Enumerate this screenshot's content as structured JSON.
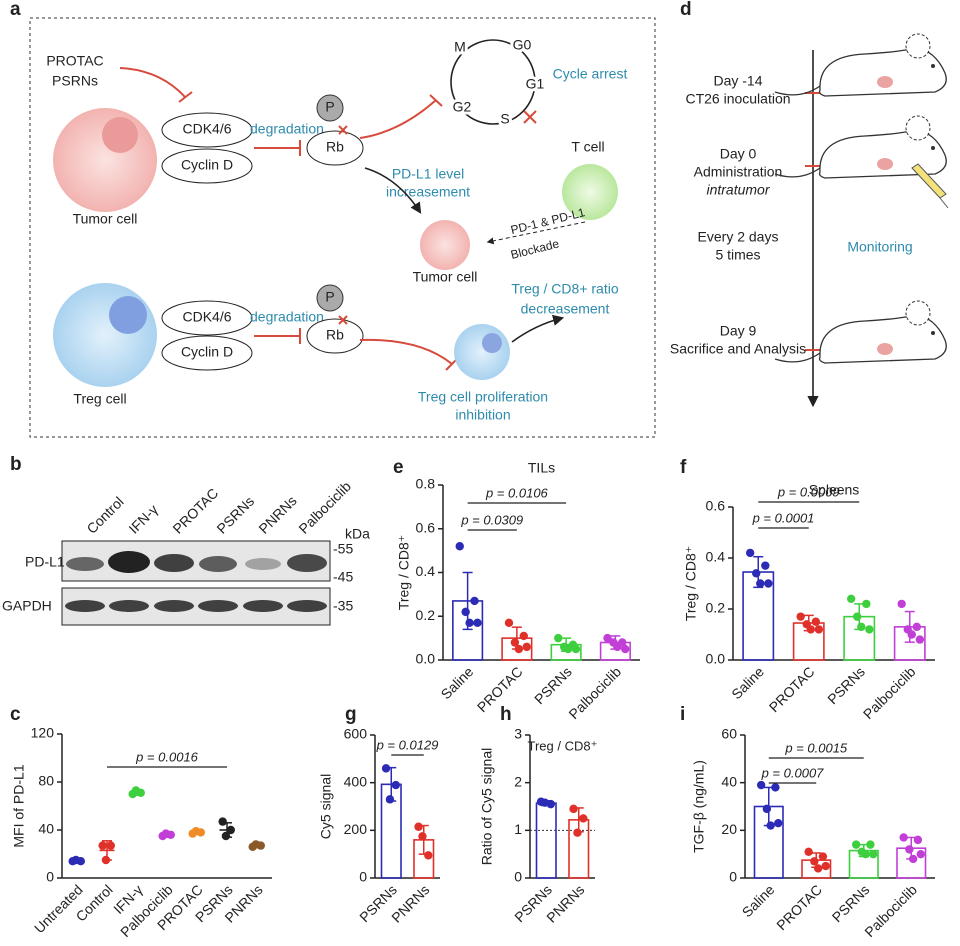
{
  "panel_a": {
    "label": "a",
    "inhibitors": [
      "PROTAC",
      "PSRNs"
    ],
    "tumor_row": {
      "cell": "Tumor cell",
      "complex": [
        "CDK4/6",
        "Cyclin D"
      ],
      "process": "degradation",
      "phospho": "P",
      "target": "Rb",
      "pdl1": [
        "PD-L1 level",
        "increasement"
      ],
      "tumor_cell": "Tumor cell",
      "t_cell": "T cell",
      "blockade": [
        "PD-1 & PD-L1",
        "Blockade"
      ]
    },
    "cycle": {
      "phases": [
        "M",
        "G0",
        "G1",
        "S",
        "G2"
      ],
      "outcome": "Cycle arrest"
    },
    "treg_row": {
      "cell": "Treg cell",
      "complex": [
        "CDK4/6",
        "Cyclin D"
      ],
      "process": "degradation",
      "phospho": "P",
      "target": "Rb",
      "inhibition": [
        "Treg cell proliferation",
        "inhibition"
      ],
      "ratio": [
        "Treg / CD8+ ratio",
        "decreasement"
      ]
    }
  },
  "panel_d": {
    "label": "d",
    "events": [
      [
        "Day -14",
        "CT26 inoculation"
      ],
      [
        "Day 0",
        "Administration",
        "intratumor"
      ],
      [
        "Every 2 days",
        "5 times"
      ],
      [
        "Day 9",
        "Sacrifice and Analysis"
      ]
    ],
    "phase": "Monitoring"
  },
  "panel_b": {
    "label": "b",
    "lanes": [
      "Control",
      "IFN-γ",
      "PROTAC",
      "PSRNs",
      "PNRNs",
      "Palbociclib"
    ],
    "unit": "kDa",
    "rows": [
      "PD-L1",
      "GAPDH"
    ],
    "markers": [
      "-55",
      "-45",
      "-35"
    ]
  },
  "chart_data": [
    {
      "panel": "e",
      "type": "bar",
      "title": "TILs",
      "ylabel": "Treg / CD8⁺",
      "categories": [
        "Saline",
        "PROTAC",
        "PSRNs",
        "Palbociclib"
      ],
      "colors": [
        "#2b2bb5",
        "#e0302a",
        "#3ecf3e",
        "#c13fd6"
      ],
      "values": [
        0.27,
        0.1,
        0.07,
        0.08
      ],
      "errors": [
        0.13,
        0.05,
        0.03,
        0.03
      ],
      "points": [
        [
          0.52,
          0.27,
          0.22,
          0.17,
          0.17
        ],
        [
          0.17,
          0.11,
          0.08,
          0.06,
          0.05
        ],
        [
          0.1,
          0.07,
          0.06,
          0.05,
          0.05
        ],
        [
          0.1,
          0.08,
          0.08,
          0.05,
          0.06
        ]
      ],
      "ylim": [
        0,
        0.8
      ],
      "yticks": [
        {
          "value": 0,
          "label": "0.0"
        },
        0.2,
        0.4,
        0.6,
        0.8
      ],
      "annotations": [
        "p = 0.0106",
        "p = 0.0309"
      ]
    },
    {
      "panel": "f",
      "type": "bar",
      "title": "Spleens",
      "ylabel": "Treg / CD8⁺",
      "categories": [
        "Saline",
        "PROTAC",
        "PSRNs",
        "Palbociclib"
      ],
      "colors": [
        "#2b2bb5",
        "#e0302a",
        "#3ecf3e",
        "#c13fd6"
      ],
      "values": [
        0.345,
        0.145,
        0.17,
        0.13
      ],
      "errors": [
        0.06,
        0.03,
        0.05,
        0.06
      ],
      "points": [
        [
          0.42,
          0.37,
          0.34,
          0.3,
          0.3
        ],
        [
          0.17,
          0.15,
          0.14,
          0.12,
          0.12
        ],
        [
          0.24,
          0.22,
          0.17,
          0.12,
          0.13
        ],
        [
          0.22,
          0.13,
          0.12,
          0.08,
          0.1
        ]
      ],
      "ylim": [
        0,
        0.6
      ],
      "yticks": [
        {
          "value": 0,
          "label": "0.0"
        },
        0.2,
        0.4,
        0.6
      ],
      "annotations": [
        "p = 0.0009",
        "p = 0.0001"
      ]
    },
    {
      "panel": "c",
      "type": "dot",
      "ylabel": "MFI of PD-L1",
      "categories": [
        "Untreated",
        "Control",
        "IFN-γ",
        "Palbociclib",
        "PROTAC",
        "PSRNs",
        "PNRNs"
      ],
      "colors": [
        "#2b2bb5",
        "#e0302a",
        "#3ecf3e",
        "#c13fd6",
        "#f08a24",
        "#222222",
        "#8b5a2b"
      ],
      "values": [
        14,
        23,
        71,
        36,
        38,
        40,
        27
      ],
      "errors": [
        1,
        8,
        2,
        2,
        1.5,
        6,
        1.5
      ],
      "points": [
        [
          14,
          14,
          15
        ],
        [
          27,
          27,
          15
        ],
        [
          70,
          71,
          73
        ],
        [
          35,
          36,
          37
        ],
        [
          37,
          38,
          39
        ],
        [
          47,
          40,
          35
        ],
        [
          26,
          27,
          28
        ]
      ],
      "ylim": [
        0,
        120
      ],
      "yticks": [
        0,
        40,
        80,
        120
      ],
      "annotations": [
        "p = 0.0016"
      ]
    },
    {
      "panel": "g",
      "type": "bar",
      "ylabel": "Cy5 signal",
      "categories": [
        "PSRNs",
        "PNRNs"
      ],
      "colors": [
        "#2b2bb5",
        "#e0302a"
      ],
      "values": [
        393,
        160
      ],
      "errors": [
        70,
        60
      ],
      "points": [
        [
          460,
          390,
          330
        ],
        [
          215,
          95,
          175
        ]
      ],
      "ylim": [
        0,
        600
      ],
      "yticks": [
        0,
        200,
        400,
        600
      ],
      "annotations": [
        "p = 0.0129"
      ]
    },
    {
      "panel": "h",
      "type": "bar",
      "ylabel": "Ratio of Cy5 signal",
      "subtitle": "Treg / CD8⁺",
      "categories": [
        "PSRNs",
        "PNRNs"
      ],
      "colors": [
        "#2b2bb5",
        "#e0302a"
      ],
      "values": [
        1.57,
        1.22
      ],
      "errors": [
        0.05,
        0.25
      ],
      "points": [
        [
          1.6,
          1.55,
          1.58
        ],
        [
          1.45,
          1.25,
          0.95
        ]
      ],
      "ylim": [
        0,
        3
      ],
      "yticks": [
        0,
        1,
        2,
        3
      ],
      "reference_line": 1
    },
    {
      "panel": "i",
      "type": "bar",
      "ylabel": "TGF-β (ng/mL)",
      "categories": [
        "Saline",
        "PROTAC",
        "PSRNs",
        "Palbociclib"
      ],
      "colors": [
        "#2b2bb5",
        "#e0302a",
        "#3ecf3e",
        "#c13fd6"
      ],
      "values": [
        30,
        7.5,
        11.5,
        12.5
      ],
      "errors": [
        8,
        3,
        2.5,
        4.5
      ],
      "points": [
        [
          39,
          38,
          29,
          23,
          22
        ],
        [
          11,
          9,
          7,
          5,
          4
        ],
        [
          14,
          14,
          11,
          10,
          10
        ],
        [
          17,
          16,
          12,
          10,
          8
        ]
      ],
      "ylim": [
        0,
        60
      ],
      "yticks": [
        0,
        20,
        40,
        60
      ],
      "annotations": [
        "p = 0.0015",
        "p = 0.0007"
      ]
    }
  ]
}
